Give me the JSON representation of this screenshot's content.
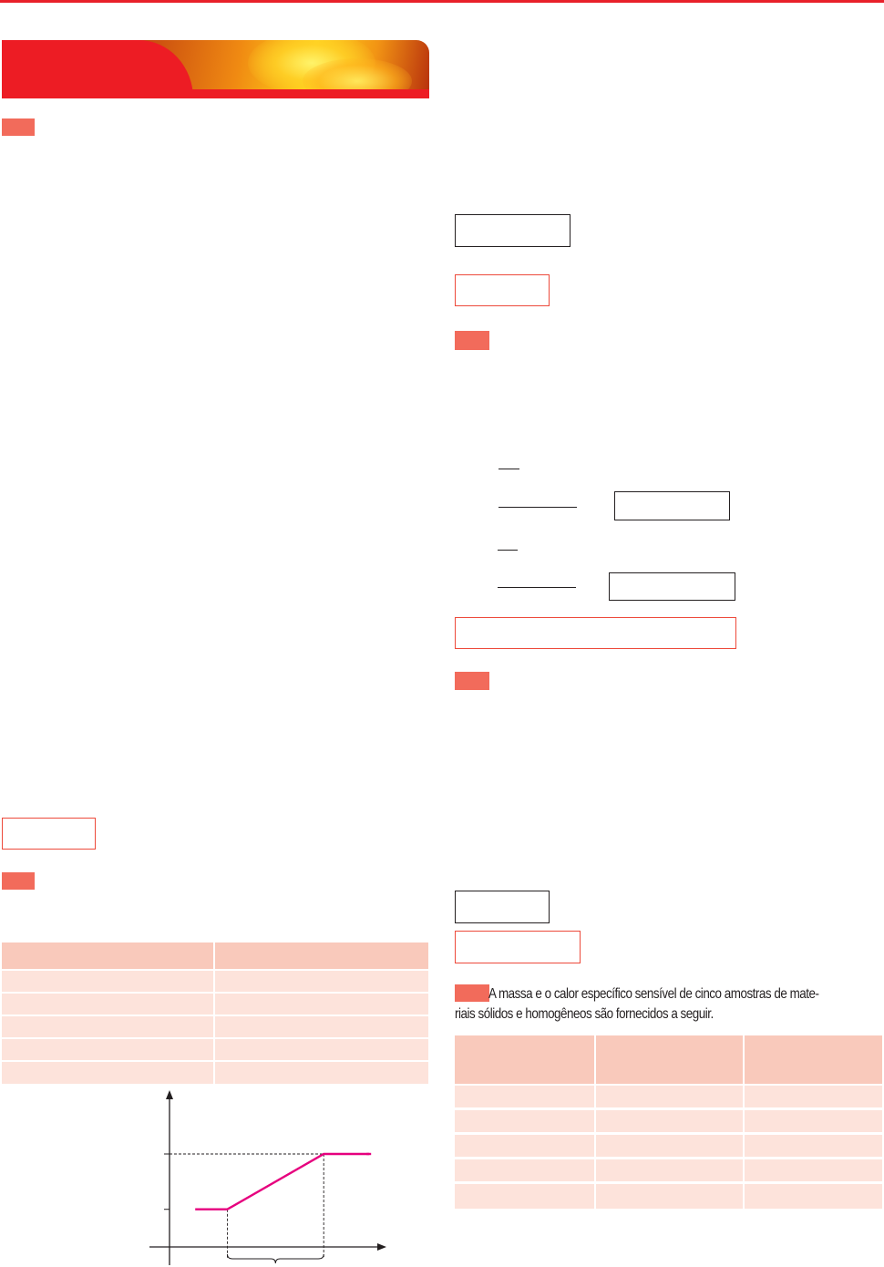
{
  "question": {
    "text_line1": "A massa e o calor específico sensível de cinco amostras de mate-",
    "text_line2": "riais sólidos e homogêneos são fornecidos a seguir."
  },
  "colors": {
    "accent_red": "#ed1c24",
    "tag_salmon": "#f26b5b",
    "table_header": "#f9c9bb",
    "table_row": "#fde3db",
    "graph_line": "#e6007e"
  },
  "chart_data": {
    "type": "line",
    "title": "",
    "xlabel": "",
    "ylabel": "",
    "series": [
      {
        "x": [
          0.12,
          0.27,
          0.72,
          1.0
        ],
        "y": [
          0.34,
          0.34,
          1.0,
          1.0
        ]
      }
    ],
    "dashed_extension": {
      "x": [
        0.72,
        1.0
      ],
      "y": [
        1.0,
        1.0
      ]
    },
    "grid": false
  }
}
